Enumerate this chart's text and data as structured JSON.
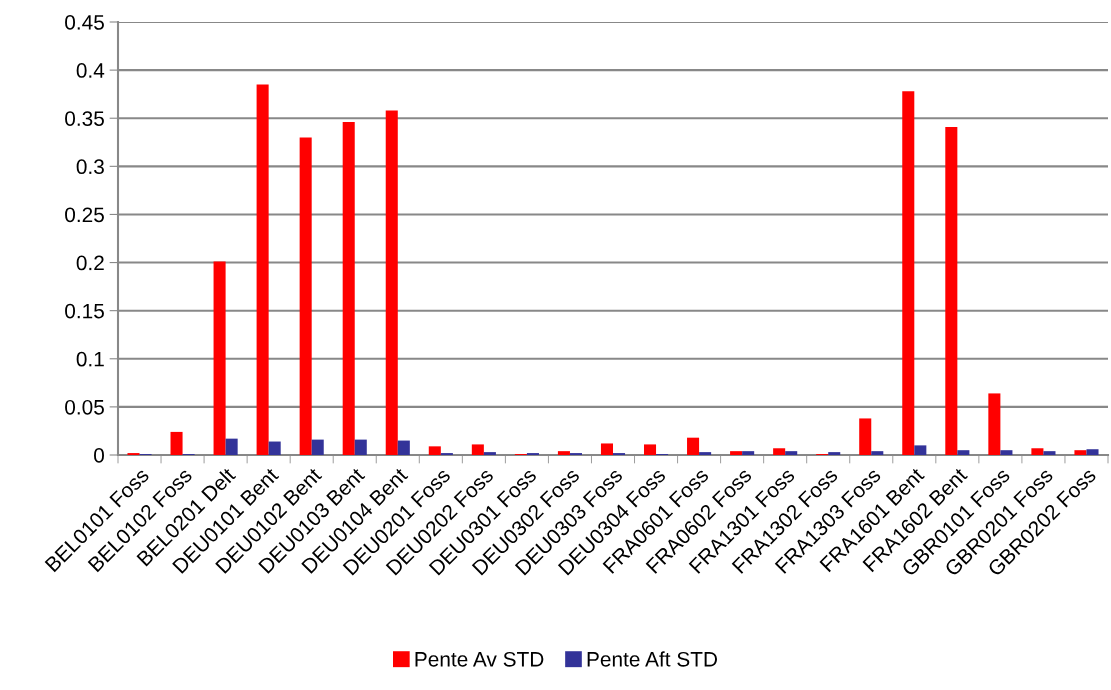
{
  "chart_data": {
    "type": "bar",
    "categories": [
      "BEL0101 Foss",
      "BEL0102 Foss",
      "BEL0201 Delt",
      "DEU0101 Bent",
      "DEU0102 Bent",
      "DEU0103 Bent",
      "DEU0104 Bent",
      "DEU0201 Foss",
      "DEU0202 Foss",
      "DEU0301 Foss",
      "DEU0302 Foss",
      "DEU0303 Foss",
      "DEU0304 Foss",
      "FRA0601 Foss",
      "FRA0602 Foss",
      "FRA1301 Foss",
      "FRA1302 Foss",
      "FRA1303 Foss",
      "FRA1601 Bent",
      "FRA1602 Bent",
      "GBR0101 Foss",
      "GBR0201 Foss",
      "GBR0202 Foss"
    ],
    "series": [
      {
        "name": "Pente Av STD",
        "color": "#ff0000",
        "values": [
          0.002,
          0.024,
          0.201,
          0.385,
          0.33,
          0.346,
          0.358,
          0.009,
          0.011,
          0.001,
          0.004,
          0.012,
          0.011,
          0.018,
          0.004,
          0.007,
          0.001,
          0.038,
          0.378,
          0.341,
          0.064,
          0.007,
          0.005
        ]
      },
      {
        "name": "Pente Aft STD",
        "color": "#333399",
        "values": [
          0.001,
          0.001,
          0.017,
          0.014,
          0.016,
          0.016,
          0.015,
          0.002,
          0.003,
          0.002,
          0.002,
          0.002,
          0.001,
          0.003,
          0.004,
          0.004,
          0.003,
          0.004,
          0.01,
          0.005,
          0.005,
          0.004,
          0.006
        ]
      }
    ],
    "ylim": [
      0,
      0.45
    ],
    "yticks": [
      0,
      0.05,
      0.1,
      0.15,
      0.2,
      0.25,
      0.3,
      0.35,
      0.4,
      0.45
    ],
    "grid": "y",
    "legend": "bottom"
  }
}
